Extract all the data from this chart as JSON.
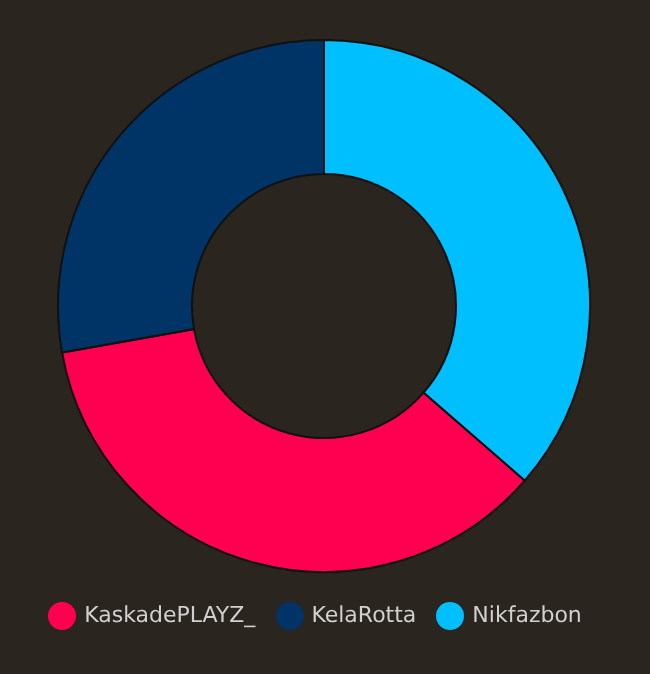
{
  "chart_data": {
    "type": "donut",
    "categories": [
      "Nikfazbon",
      "KaskadePLAYZ_",
      "KelaRotta"
    ],
    "values": [
      36.4,
      35.8,
      27.8
    ],
    "colors": [
      "#00bfff",
      "#ff0050",
      "#003366"
    ],
    "legend": "bottom"
  }
}
